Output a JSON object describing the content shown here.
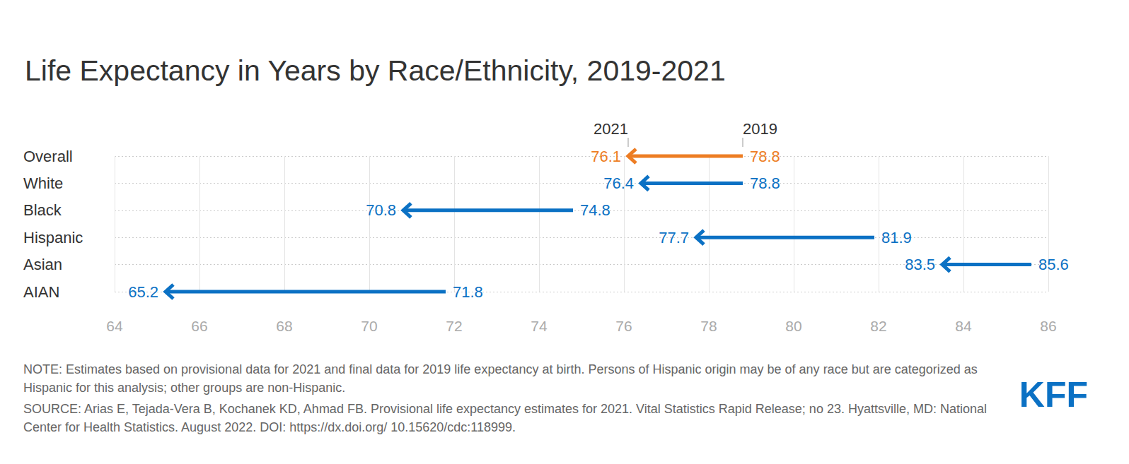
{
  "chart_data": {
    "type": "arrow",
    "title": "Life Expectancy in Years by Race/Ethnicity, 2019-2021",
    "orientation": "horizontal",
    "categories": [
      "Overall",
      "White",
      "Black",
      "Hispanic",
      "Asian",
      "AIAN"
    ],
    "series": [
      {
        "name": "2019",
        "values": [
          78.8,
          78.8,
          74.8,
          81.9,
          85.6,
          71.8
        ]
      },
      {
        "name": "2021",
        "values": [
          76.1,
          76.4,
          70.8,
          77.7,
          83.5,
          65.2
        ]
      }
    ],
    "colors": [
      "#ed7d23",
      "#0b71c4",
      "#0b71c4",
      "#0b71c4",
      "#0b71c4",
      "#0b71c4"
    ],
    "xlim": [
      64,
      86
    ],
    "xticks": [
      64,
      66,
      68,
      70,
      72,
      74,
      76,
      78,
      80,
      82,
      84,
      86
    ],
    "grid": true,
    "data_labels": true,
    "note": "NOTE: Estimates based on provisional data for 2021 and final data for 2019 life expectancy at birth. Persons of Hispanic origin may be of any race but are categorized as Hispanic for this analysis; other groups are non-Hispanic.",
    "source": "SOURCE: Arias E, Tejada-Vera B, Kochanek KD, Ahmad FB. Provisional life expectancy estimates for 2021. Vital Statistics Rapid Release; no 23. Hyattsville, MD: National Center for Health Statistics. August 2022. DOI: https://dx.doi.org/ 10.15620/cdc:118999.",
    "brand": "KFF"
  }
}
